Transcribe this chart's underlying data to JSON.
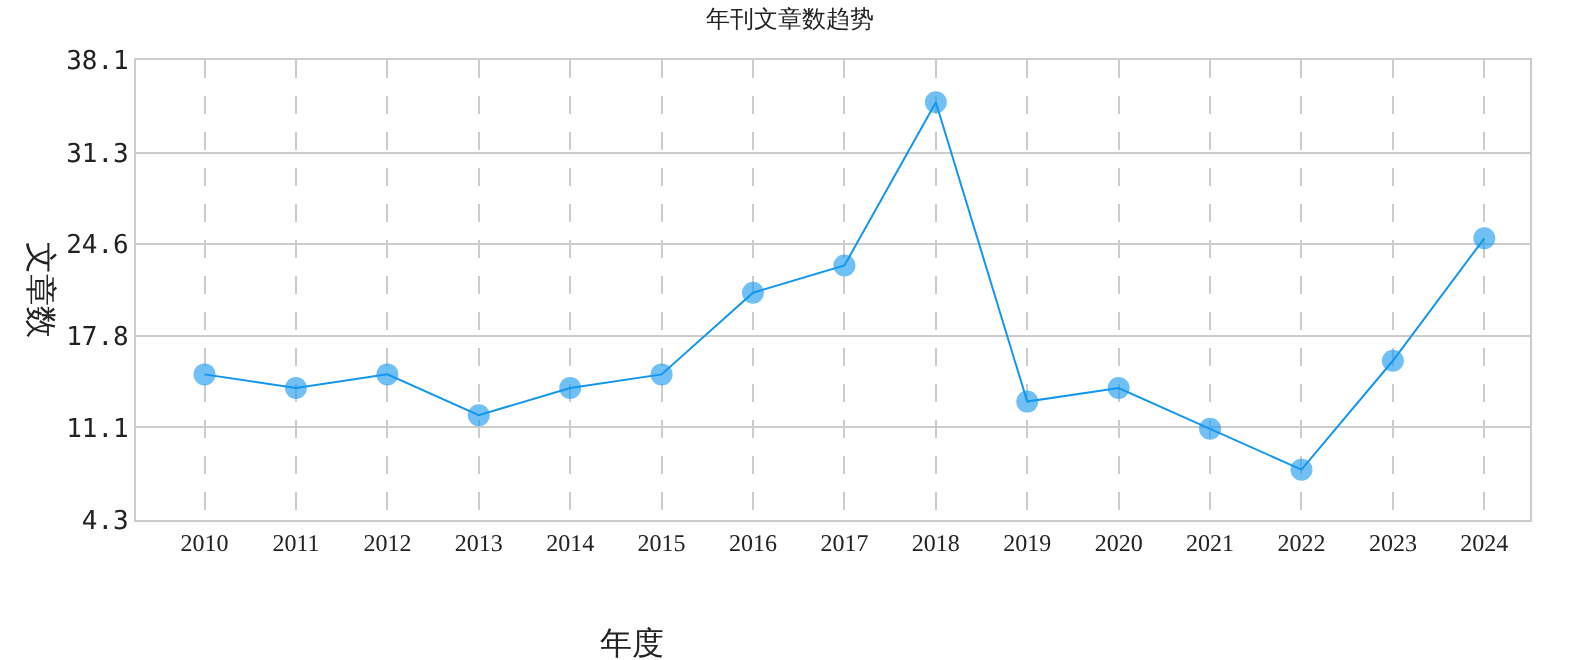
{
  "chart_data": {
    "type": "line",
    "title": "年刊文章数趋势",
    "xlabel": "年度",
    "ylabel": "文章数",
    "categories": [
      "2010",
      "2011",
      "2012",
      "2013",
      "2014",
      "2015",
      "2016",
      "2017",
      "2018",
      "2019",
      "2020",
      "2021",
      "2022",
      "2023",
      "2024"
    ],
    "series": [
      {
        "color": "#1296ee",
        "values": [
          15,
          14,
          15,
          12,
          14,
          15,
          21,
          23,
          35,
          13,
          14,
          11,
          8,
          16,
          25
        ]
      }
    ],
    "ylim": [
      4.3,
      38.1
    ],
    "yticks": [
      4.3,
      11.1,
      17.8,
      24.6,
      31.3,
      38.1
    ],
    "grid": true,
    "marker": "circle",
    "line_style": "solid",
    "legend": false
  }
}
